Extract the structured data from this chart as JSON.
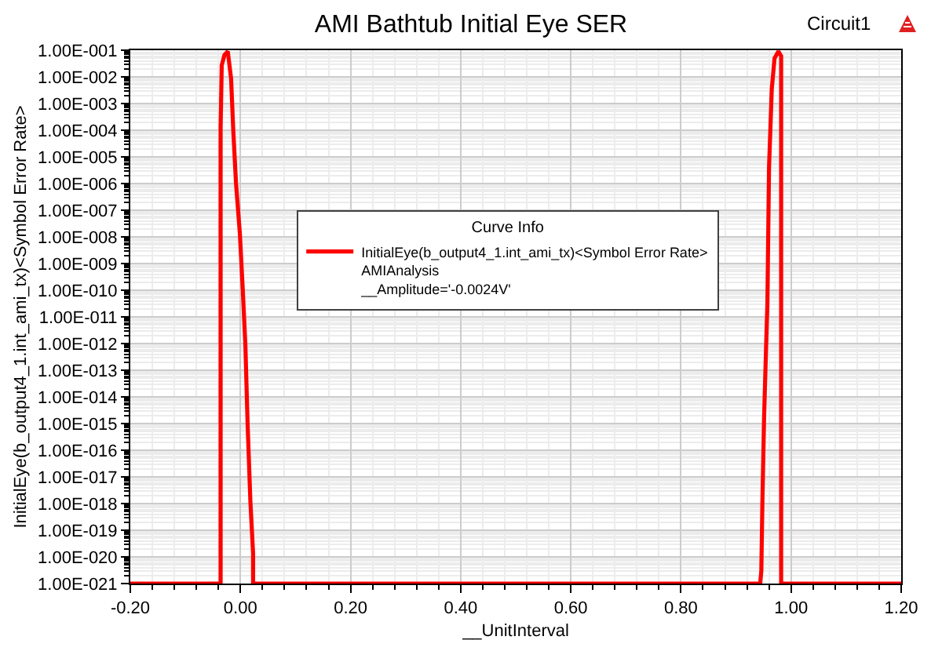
{
  "chart_data": {
    "type": "line",
    "title": "AMI Bathtub Initial Eye SER",
    "xlabel": "__UnitInterval",
    "ylabel": "InitialEye(b_output4_1.int_ami_tx)<Symbol Error Rate>",
    "legend_title": "Curve Info",
    "annotations": [
      "Circuit1"
    ],
    "x": [
      -0.2,
      -0.036,
      -0.036,
      -0.034,
      -0.029,
      -0.023,
      -0.017,
      -0.013,
      -0.008,
      -0.001,
      0.004,
      0.009,
      0.013,
      0.018,
      0.023,
      0.023,
      0.944,
      0.946,
      0.948,
      0.951,
      0.955,
      0.957,
      0.96,
      0.965,
      0.97,
      0.977,
      0.982,
      0.982,
      1.2
    ],
    "series": [
      {
        "name": "InitialEye(b_output4_1.int_ami_tx)<Symbol Error Rate>\nAMIAnalysis\n__Amplitude='-0.0024V'",
        "color": "#ff0000",
        "values": [
          1e-21,
          1e-21,
          0.00012,
          0.027,
          0.066,
          0.09,
          0.0087,
          0.0001,
          1e-06,
          1.3e-08,
          1.3e-10,
          8.7e-13,
          1e-15,
          1.3e-18,
          1.3e-20,
          1e-21,
          1e-21,
          3e-21,
          1.3e-18,
          1.6e-15,
          1.3e-12,
          3e-11,
          4e-06,
          0.0035,
          0.05,
          0.09,
          0.06,
          1e-21,
          1e-21
        ]
      }
    ],
    "xlim": [
      -0.2,
      1.2
    ],
    "xticks": [
      {
        "value": -0.2,
        "label": "-0.20"
      },
      {
        "value": 0,
        "label": "0.00"
      },
      {
        "value": 0.2,
        "label": "0.20"
      },
      {
        "value": 0.4,
        "label": "0.40"
      },
      {
        "value": 0.6,
        "label": "0.60"
      },
      {
        "value": 0.8,
        "label": "0.80"
      },
      {
        "value": 1,
        "label": "1.00"
      },
      {
        "value": 1.2,
        "label": "1.20"
      }
    ],
    "ylim": [
      1e-21,
      0.1
    ],
    "yticks": [
      {
        "value": 0.1,
        "label": "1.00E-001"
      },
      {
        "value": 0.01,
        "label": "1.00E-002"
      },
      {
        "value": 0.001,
        "label": "1.00E-003"
      },
      {
        "value": 0.0001,
        "label": "1.00E-004"
      },
      {
        "value": 1e-05,
        "label": "1.00E-005"
      },
      {
        "value": 1e-06,
        "label": "1.00E-006"
      },
      {
        "value": 1e-07,
        "label": "1.00E-007"
      },
      {
        "value": 1e-08,
        "label": "1.00E-008"
      },
      {
        "value": 1e-09,
        "label": "1.00E-009"
      },
      {
        "value": 1e-10,
        "label": "1.00E-010"
      },
      {
        "value": 1e-11,
        "label": "1.00E-011"
      },
      {
        "value": 1e-12,
        "label": "1.00E-012"
      },
      {
        "value": 1e-13,
        "label": "1.00E-013"
      },
      {
        "value": 1e-14,
        "label": "1.00E-014"
      },
      {
        "value": 1e-15,
        "label": "1.00E-015"
      },
      {
        "value": 1e-16,
        "label": "1.00E-016"
      },
      {
        "value": 1e-17,
        "label": "1.00E-017"
      },
      {
        "value": 1e-18,
        "label": "1.00E-018"
      },
      {
        "value": 1e-19,
        "label": "1.00E-019"
      },
      {
        "value": 1e-20,
        "label": "1.00E-020"
      },
      {
        "value": 1e-21,
        "label": "1.00E-021"
      }
    ],
    "log": "y",
    "grid": true,
    "legend": "center",
    "line_style": "solid"
  }
}
